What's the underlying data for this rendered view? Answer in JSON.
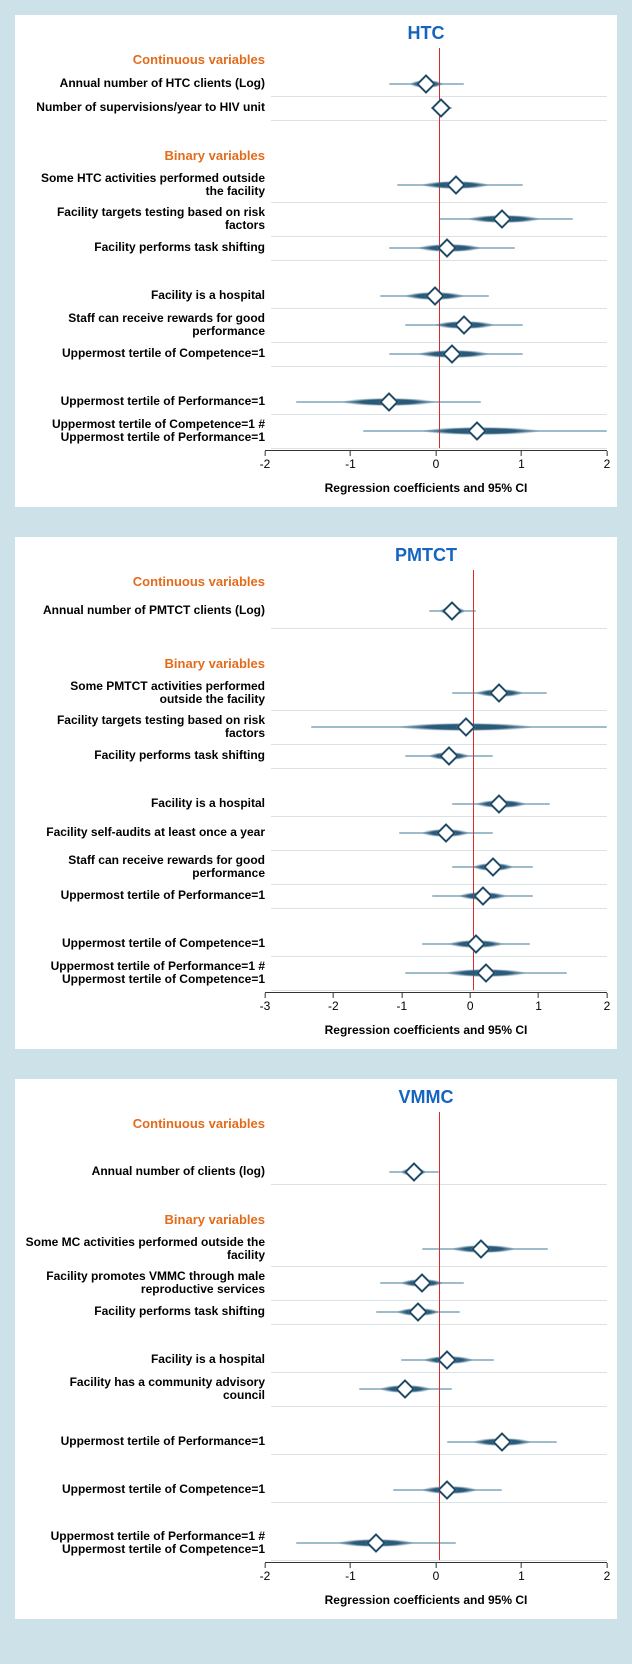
{
  "xlabel": "Regression coefficients and 95% CI",
  "colors": {
    "page_bg": "#cde1e8",
    "panel_bg": "#ffffff",
    "title": "#1565c0",
    "section": "#e36b1a",
    "zero_line": "#e12828",
    "ci_wide": "#9fbccc",
    "ci_narrow": "#2a5a7a",
    "marker_border": "#1f4a66",
    "marker_fill": "#ffffff",
    "grid_row": "rgba(100,140,160,0.25)"
  },
  "panels": [
    {
      "title": "HTC",
      "xlim": [
        -2,
        2
      ],
      "xtick_step": 1,
      "rows": [
        {
          "type": "section",
          "label": "Continuous variables"
        },
        {
          "type": "data",
          "label": "Annual number of HTC clients (Log)",
          "point": -0.15,
          "ci_wide": [
            -0.6,
            0.3
          ],
          "ci_narrow": [
            -0.35,
            0.05
          ]
        },
        {
          "type": "data",
          "label": "Number of supervisions/year to HIV unit",
          "point": 0.02,
          "ci_wide": [
            -0.1,
            0.15
          ],
          "ci_narrow": [
            -0.05,
            0.1
          ]
        },
        {
          "type": "spacer"
        },
        {
          "type": "section",
          "label": "Binary variables"
        },
        {
          "type": "data",
          "tall": true,
          "label": "Some HTC activities performed outside the facility",
          "point": 0.2,
          "ci_wide": [
            -0.5,
            1.0
          ],
          "ci_narrow": [
            -0.2,
            0.6
          ]
        },
        {
          "type": "data",
          "tall": true,
          "label": "Facility targets testing based on risk factors",
          "point": 0.75,
          "ci_wide": [
            0.0,
            1.6
          ],
          "ci_narrow": [
            0.35,
            1.2
          ]
        },
        {
          "type": "data",
          "label": "Facility performs task shifting",
          "point": 0.1,
          "ci_wide": [
            -0.6,
            0.9
          ],
          "ci_narrow": [
            -0.25,
            0.5
          ]
        },
        {
          "type": "spacer"
        },
        {
          "type": "data",
          "label": "Facility is a hospital",
          "point": -0.05,
          "ci_wide": [
            -0.7,
            0.6
          ],
          "ci_narrow": [
            -0.4,
            0.3
          ]
        },
        {
          "type": "data",
          "tall": true,
          "label": "Staff can receive rewards for good performance",
          "point": 0.3,
          "ci_wide": [
            -0.4,
            1.0
          ],
          "ci_narrow": [
            -0.05,
            0.65
          ]
        },
        {
          "type": "data",
          "label": "Uppermost tertile of Competence=1",
          "point": 0.15,
          "ci_wide": [
            -0.6,
            1.0
          ],
          "ci_narrow": [
            -0.25,
            0.6
          ]
        },
        {
          "type": "spacer"
        },
        {
          "type": "data",
          "label": "Uppermost tertile of Performance=1",
          "point": -0.6,
          "ci_wide": [
            -1.7,
            0.5
          ],
          "ci_narrow": [
            -1.15,
            -0.05
          ]
        },
        {
          "type": "data",
          "tall": true,
          "label": "Uppermost tertile of Competence=1 # Uppermost tertile of Performance=1",
          "point": 0.45,
          "ci_wide": [
            -0.9,
            2.0
          ],
          "ci_narrow": [
            -0.2,
            1.2
          ]
        }
      ]
    },
    {
      "title": "PMTCT",
      "xlim": [
        -3,
        2
      ],
      "xtick_step": 1,
      "rows": [
        {
          "type": "section",
          "label": "Continuous variables"
        },
        {
          "type": "data",
          "tall": true,
          "label": "Annual number of PMTCT clients (Log)",
          "point": -0.3,
          "ci_wide": [
            -0.65,
            0.05
          ],
          "ci_narrow": [
            -0.48,
            -0.12
          ]
        },
        {
          "type": "spacer"
        },
        {
          "type": "section",
          "label": "Binary variables"
        },
        {
          "type": "data",
          "tall": true,
          "label": "Some PMTCT activities performed outside the facility",
          "point": 0.4,
          "ci_wide": [
            -0.3,
            1.1
          ],
          "ci_narrow": [
            0.05,
            0.75
          ]
        },
        {
          "type": "data",
          "tall": true,
          "label": "Facility targets testing based on risk factors",
          "point": -0.1,
          "ci_wide": [
            -2.4,
            2.0
          ],
          "ci_narrow": [
            -1.1,
            0.9
          ]
        },
        {
          "type": "data",
          "label": "Facility performs task shifting",
          "point": -0.35,
          "ci_wide": [
            -1.0,
            0.3
          ],
          "ci_narrow": [
            -0.65,
            -0.05
          ]
        },
        {
          "type": "spacer"
        },
        {
          "type": "data",
          "label": "Facility is a hospital",
          "point": 0.4,
          "ci_wide": [
            -0.3,
            1.15
          ],
          "ci_narrow": [
            0.05,
            0.8
          ]
        },
        {
          "type": "data",
          "tall": true,
          "label": "Facility self-audits at least once a year",
          "point": -0.4,
          "ci_wide": [
            -1.1,
            0.3
          ],
          "ci_narrow": [
            -0.75,
            -0.05
          ]
        },
        {
          "type": "data",
          "tall": true,
          "label": "Staff can receive rewards for good performance",
          "point": 0.3,
          "ci_wide": [
            -0.3,
            0.9
          ],
          "ci_narrow": [
            0.0,
            0.6
          ]
        },
        {
          "type": "data",
          "label": "Uppermost tertile of Performance=1",
          "point": 0.15,
          "ci_wide": [
            -0.6,
            0.9
          ],
          "ci_narrow": [
            -0.2,
            0.5
          ]
        },
        {
          "type": "spacer"
        },
        {
          "type": "data",
          "label": "Uppermost tertile of Competence=1",
          "point": 0.05,
          "ci_wide": [
            -0.75,
            0.85
          ],
          "ci_narrow": [
            -0.35,
            0.45
          ]
        },
        {
          "type": "data",
          "tall": true,
          "label": "Uppermost tertile of Performance=1 # Uppermost tertile of Competence=1",
          "point": 0.2,
          "ci_wide": [
            -1.0,
            1.4
          ],
          "ci_narrow": [
            -0.4,
            0.8
          ]
        }
      ]
    },
    {
      "title": "VMMC",
      "xlim": [
        -2,
        2
      ],
      "xtick_step": 1,
      "rows": [
        {
          "type": "section",
          "label": "Continuous variables"
        },
        {
          "type": "spacer"
        },
        {
          "type": "data",
          "label": "Annual number of clients (log)",
          "point": -0.3,
          "ci_wide": [
            -0.6,
            0.0
          ],
          "ci_narrow": [
            -0.45,
            -0.15
          ]
        },
        {
          "type": "spacer"
        },
        {
          "type": "section",
          "label": "Binary variables"
        },
        {
          "type": "data",
          "tall": true,
          "label": "Some MC activities performed outside the facility",
          "point": 0.5,
          "ci_wide": [
            -0.2,
            1.3
          ],
          "ci_narrow": [
            0.15,
            0.9
          ]
        },
        {
          "type": "data",
          "tall": true,
          "label": "Facility promotes VMMC through male reproductive services",
          "point": -0.2,
          "ci_wide": [
            -0.7,
            0.3
          ],
          "ci_narrow": [
            -0.45,
            0.05
          ]
        },
        {
          "type": "data",
          "label": "Facility performs task shifting",
          "point": -0.25,
          "ci_wide": [
            -0.75,
            0.25
          ],
          "ci_narrow": [
            -0.5,
            0.0
          ]
        },
        {
          "type": "spacer"
        },
        {
          "type": "data",
          "label": "Facility is a hospital",
          "point": 0.1,
          "ci_wide": [
            -0.45,
            0.65
          ],
          "ci_narrow": [
            -0.18,
            0.4
          ]
        },
        {
          "type": "data",
          "tall": true,
          "label": "Facility has a community advisory council",
          "point": -0.4,
          "ci_wide": [
            -0.95,
            0.15
          ],
          "ci_narrow": [
            -0.7,
            -0.1
          ]
        },
        {
          "type": "spacer"
        },
        {
          "type": "data",
          "label": "Uppermost tertile of Performance=1",
          "point": 0.75,
          "ci_wide": [
            0.1,
            1.4
          ],
          "ci_narrow": [
            0.4,
            1.1
          ]
        },
        {
          "type": "spacer"
        },
        {
          "type": "data",
          "label": "Uppermost tertile of Competence=1",
          "point": 0.1,
          "ci_wide": [
            -0.55,
            0.75
          ],
          "ci_narrow": [
            -0.2,
            0.45
          ]
        },
        {
          "type": "spacer"
        },
        {
          "type": "data",
          "tall": true,
          "label": "Uppermost tertile of Performance=1 # Uppermost tertile of Competence=1",
          "point": -0.75,
          "ci_wide": [
            -1.7,
            0.2
          ],
          "ci_narrow": [
            -1.2,
            -0.3
          ]
        }
      ]
    }
  ]
}
